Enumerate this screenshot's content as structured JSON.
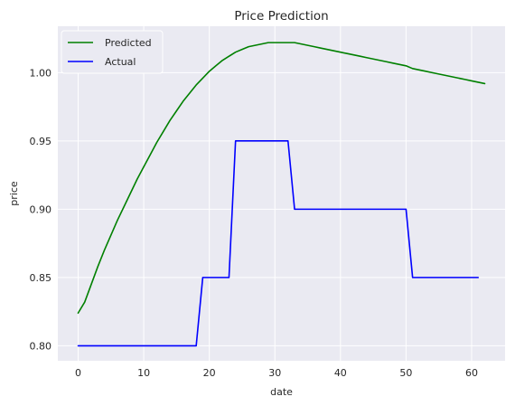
{
  "chart_data": {
    "type": "line",
    "title": "Price Prediction",
    "xlabel": "date",
    "ylabel": "price",
    "xlim": [
      -3.1,
      65.1
    ],
    "ylim": [
      0.789,
      1.034
    ],
    "xticks": [
      0,
      10,
      20,
      30,
      40,
      50,
      60
    ],
    "yticks": [
      0.8,
      0.85,
      0.9,
      0.95,
      1.0
    ],
    "ytick_labels": [
      "0.80",
      "0.85",
      "0.90",
      "0.95",
      "1.00"
    ],
    "grid": true,
    "legend_position": "top-left",
    "series": [
      {
        "name": "Predicted",
        "color": "#008000",
        "x": [
          0,
          1,
          2,
          3,
          4,
          5,
          6,
          7,
          8,
          9,
          10,
          11,
          12,
          13,
          14,
          15,
          16,
          17,
          18,
          19,
          20,
          21,
          22,
          23,
          24,
          25,
          26,
          27,
          28,
          29,
          30,
          31,
          32,
          33,
          34,
          35,
          36,
          37,
          38,
          39,
          40,
          41,
          42,
          43,
          44,
          45,
          46,
          47,
          48,
          49,
          50,
          51,
          52,
          53,
          54,
          55,
          56,
          57,
          58,
          59,
          60,
          61,
          62
        ],
        "y": [
          0.824,
          0.832,
          0.845,
          0.858,
          0.87,
          0.881,
          0.892,
          0.902,
          0.912,
          0.922,
          0.931,
          0.94,
          0.949,
          0.957,
          0.965,
          0.972,
          0.979,
          0.985,
          0.991,
          0.996,
          1.001,
          1.005,
          1.009,
          1.012,
          1.015,
          1.017,
          1.019,
          1.02,
          1.021,
          1.022,
          1.022,
          1.022,
          1.022,
          1.022,
          1.021,
          1.02,
          1.019,
          1.018,
          1.017,
          1.016,
          1.015,
          1.014,
          1.013,
          1.012,
          1.011,
          1.01,
          1.009,
          1.008,
          1.007,
          1.006,
          1.005,
          1.003,
          1.002,
          1.001,
          1.0,
          0.999,
          0.998,
          0.997,
          0.996,
          0.995,
          0.994,
          0.993,
          0.992
        ]
      },
      {
        "name": "Actual",
        "color": "#0000ff",
        "x": [
          0,
          18,
          19,
          23,
          24,
          32,
          33,
          50,
          51,
          61
        ],
        "y": [
          0.8,
          0.8,
          0.85,
          0.85,
          0.95,
          0.95,
          0.9,
          0.9,
          0.85,
          0.85
        ]
      }
    ]
  }
}
